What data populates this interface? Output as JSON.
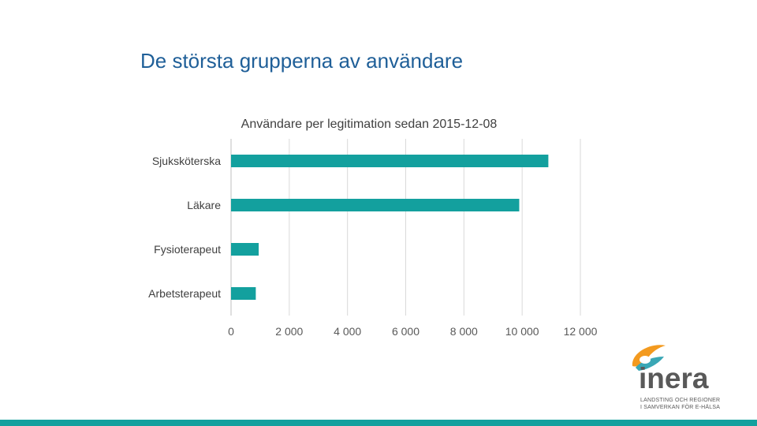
{
  "slide": {
    "title": "De största grupperna av användare"
  },
  "colors": {
    "title": "#1f5f98",
    "bar": "#13a09e",
    "bottom_bar": "#13a09e",
    "grid": "#d9d9d9",
    "logo_orange": "#f39a1f",
    "logo_teal": "#3aa7b5",
    "logo_text": "#595959"
  },
  "logo": {
    "wordmark": "inera",
    "tagline_1": "LANDSTING OCH REGIONER",
    "tagline_2": "I SAMVERKAN FÖR E-HÄLSA"
  },
  "chart_data": {
    "type": "bar",
    "orientation": "horizontal",
    "title": "Användare per legitimation sedan 2015-12-08",
    "categories": [
      "Sjuksköterska",
      "Läkare",
      "Fysioterapeut",
      "Arbetsterapeut"
    ],
    "values": [
      10900,
      9900,
      950,
      850
    ],
    "xlim": [
      0,
      12000
    ],
    "x_ticks": [
      0,
      2000,
      4000,
      6000,
      8000,
      10000,
      12000
    ],
    "x_tick_labels": [
      "0",
      "2 000",
      "4 000",
      "6 000",
      "8 000",
      "10 000",
      "12 000"
    ],
    "grid": true,
    "legend": "none"
  }
}
